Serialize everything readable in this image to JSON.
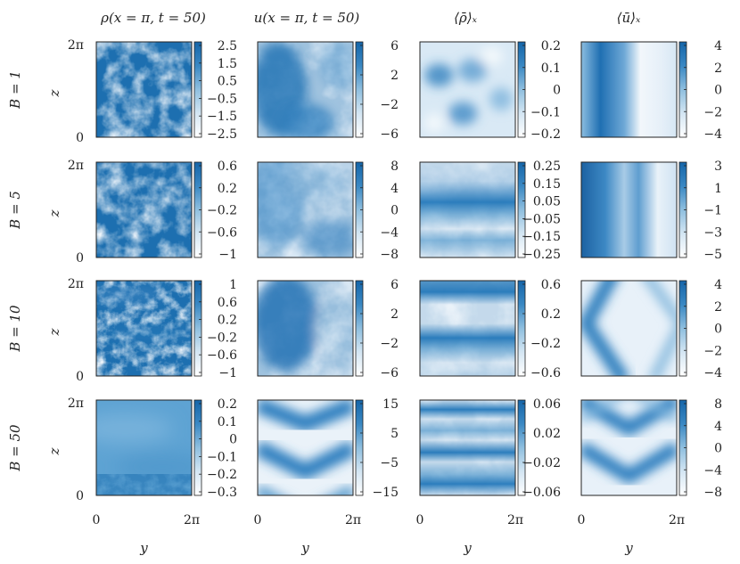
{
  "figure": {
    "column_titles": [
      "ρ(x = π, t = 50)",
      "u(x = π, t = 50)",
      "⟨ρ̄⟩ₓ",
      "⟨ū⟩ₓ"
    ],
    "row_labels": [
      "B = 1",
      "B = 5",
      "B = 10",
      "B = 50"
    ],
    "z_axis_label": "z",
    "y_axis_label": "y",
    "axis_tick_zero": "0",
    "axis_tick_max": "2π",
    "colormap": [
      "#ffffff",
      "#d4e6f3",
      "#8fbfdf",
      "#3a88c3",
      "#1565a8"
    ]
  },
  "chart_data": [
    {
      "type": "heatmap",
      "row": "B = 1",
      "column": "ρ(x = π, t = 50)",
      "colorbar_ticks": [
        "2.5",
        "1.5",
        "0.5",
        "−0.5",
        "−1.5",
        "−2.5"
      ],
      "clim": [
        -2.5,
        2.5
      ]
    },
    {
      "type": "heatmap",
      "row": "B = 1",
      "column": "u(x = π, t = 50)",
      "colorbar_ticks": [
        "6",
        "2",
        "−2",
        "−6"
      ],
      "clim": [
        -6,
        6
      ]
    },
    {
      "type": "heatmap",
      "row": "B = 1",
      "column": "⟨ρ̄⟩ₓ",
      "colorbar_ticks": [
        "0.2",
        "0.1",
        "0",
        "−0.1",
        "−0.2"
      ],
      "clim": [
        -0.2,
        0.2
      ]
    },
    {
      "type": "heatmap",
      "row": "B = 1",
      "column": "⟨ū⟩ₓ",
      "colorbar_ticks": [
        "4",
        "2",
        "0",
        "−2",
        "−4"
      ],
      "clim": [
        -4,
        4
      ]
    },
    {
      "type": "heatmap",
      "row": "B = 5",
      "column": "ρ(x = π, t = 50)",
      "colorbar_ticks": [
        "0.6",
        "0.2",
        "−0.2",
        "−0.6",
        "−1"
      ],
      "clim": [
        -1,
        0.8
      ]
    },
    {
      "type": "heatmap",
      "row": "B = 5",
      "column": "u(x = π, t = 50)",
      "colorbar_ticks": [
        "8",
        "4",
        "0",
        "−4",
        "−8"
      ],
      "clim": [
        -8,
        8
      ]
    },
    {
      "type": "heatmap",
      "row": "B = 5",
      "column": "⟨ρ̄⟩ₓ",
      "colorbar_ticks": [
        "0.25",
        "0.15",
        "0.05",
        "−0.05",
        "−0.15",
        "−0.25"
      ],
      "clim": [
        -0.25,
        0.25
      ]
    },
    {
      "type": "heatmap",
      "row": "B = 5",
      "column": "⟨ū⟩ₓ",
      "colorbar_ticks": [
        "3",
        "1",
        "−1",
        "−3",
        "−5"
      ],
      "clim": [
        -5,
        3.5
      ]
    },
    {
      "type": "heatmap",
      "row": "B = 10",
      "column": "ρ(x = π, t = 50)",
      "colorbar_ticks": [
        "1",
        "0.6",
        "0.2",
        "−0.2",
        "−0.6",
        "−1"
      ],
      "clim": [
        -1,
        1
      ]
    },
    {
      "type": "heatmap",
      "row": "B = 10",
      "column": "u(x = π, t = 50)",
      "colorbar_ticks": [
        "6",
        "2",
        "−2",
        "−6"
      ],
      "clim": [
        -6,
        6
      ]
    },
    {
      "type": "heatmap",
      "row": "B = 10",
      "column": "⟨ρ̄⟩ₓ",
      "colorbar_ticks": [
        "0.6",
        "0.2",
        "−0.2",
        "−0.6"
      ],
      "clim": [
        -0.6,
        0.6
      ]
    },
    {
      "type": "heatmap",
      "row": "B = 10",
      "column": "⟨ū⟩ₓ",
      "colorbar_ticks": [
        "4",
        "2",
        "0",
        "−2",
        "−4"
      ],
      "clim": [
        -4,
        4
      ]
    },
    {
      "type": "heatmap",
      "row": "B = 50",
      "column": "ρ(x = π, t = 50)",
      "colorbar_ticks": [
        "0.2",
        "0.1",
        "0",
        "−0.1",
        "−0.2",
        "−0.3"
      ],
      "clim": [
        -0.3,
        0.2
      ]
    },
    {
      "type": "heatmap",
      "row": "B = 50",
      "column": "u(x = π, t = 50)",
      "colorbar_ticks": [
        "15",
        "5",
        "−5",
        "−15"
      ],
      "clim": [
        -15,
        15
      ]
    },
    {
      "type": "heatmap",
      "row": "B = 50",
      "column": "⟨ρ̄⟩ₓ",
      "colorbar_ticks": [
        "0.06",
        "0.02",
        "−0.02",
        "−0.06"
      ],
      "clim": [
        -0.06,
        0.06
      ]
    },
    {
      "type": "heatmap",
      "row": "B = 50",
      "column": "⟨ū⟩ₓ",
      "colorbar_ticks": [
        "8",
        "4",
        "0",
        "−4",
        "−8"
      ],
      "clim": [
        -8,
        8
      ]
    }
  ]
}
